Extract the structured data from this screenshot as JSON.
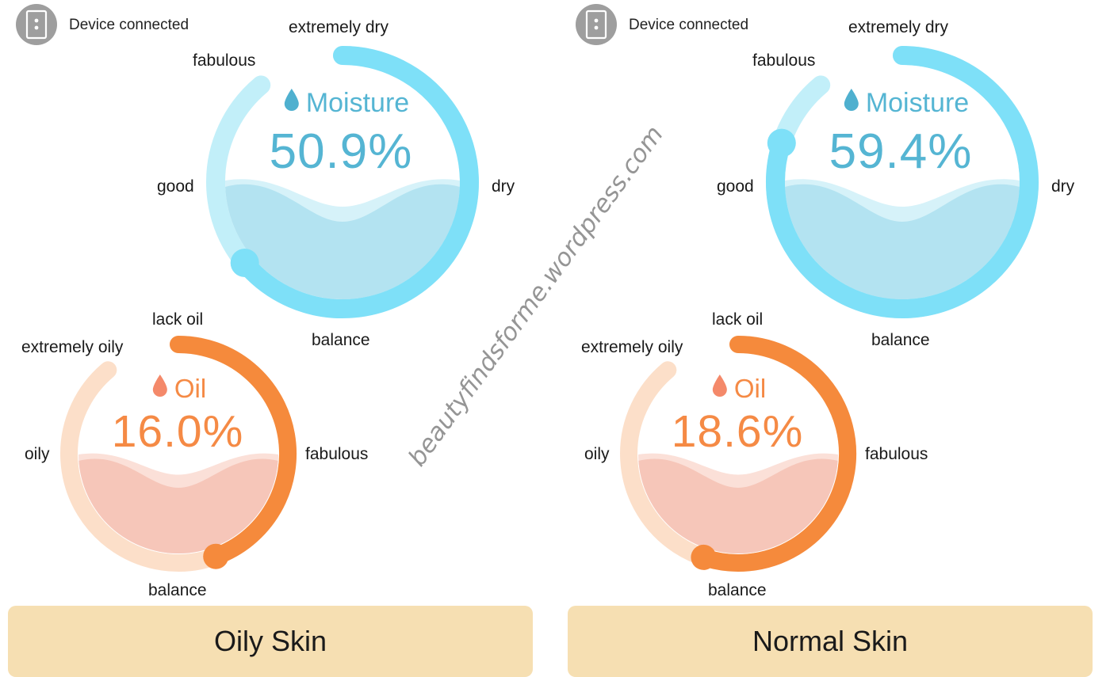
{
  "panels": [
    {
      "id": "left",
      "device_status": "Device connected",
      "moisture": {
        "title": "Moisture",
        "value_text": "50.9%",
        "level_fraction": 0.72,
        "labels": {
          "top": "extremely dry",
          "top_left": "fabulous",
          "left": "good",
          "right": "dry",
          "bottom": "balance"
        }
      },
      "oil": {
        "title": "Oil",
        "value_text": "16.0%",
        "level_fraction": 0.5,
        "labels": {
          "top": "lack oil",
          "top_left": "extremely oily",
          "left": "oily",
          "right": "fabulous",
          "bottom": "balance"
        }
      },
      "skin_type": "Oily Skin"
    },
    {
      "id": "right",
      "device_status": "Device connected",
      "moisture": {
        "title": "Moisture",
        "value_text": "59.4%",
        "level_fraction": 0.9,
        "labels": {
          "top": "extremely dry",
          "top_left": "fabulous",
          "left": "good",
          "right": "dry",
          "bottom": "balance"
        }
      },
      "oil": {
        "title": "Oil",
        "value_text": "18.6%",
        "level_fraction": 0.62,
        "labels": {
          "top": "lack oil",
          "top_left": "extremely oily",
          "left": "oily",
          "right": "fabulous",
          "bottom": "balance"
        }
      },
      "skin_type": "Normal Skin"
    }
  ],
  "watermark": "beautyfindsforme.wordpress.com",
  "colors": {
    "moisture_track": "#c2eff9",
    "moisture_arc": "#7ee0f8",
    "moisture_fill": "#b3e3f1",
    "moisture_text": "#55b5d3",
    "oil_track": "#fcdfc9",
    "oil_arc": "#f58a3c",
    "oil_fill": "#f6c6b9",
    "oil_text": "#f58a45",
    "skin_type_bar": "#f6dfb2",
    "device_icon": "#9e9e9e"
  },
  "icons": {
    "device": "device-icon",
    "moisture": "water-drop-icon",
    "oil": "oil-drop-icon"
  }
}
